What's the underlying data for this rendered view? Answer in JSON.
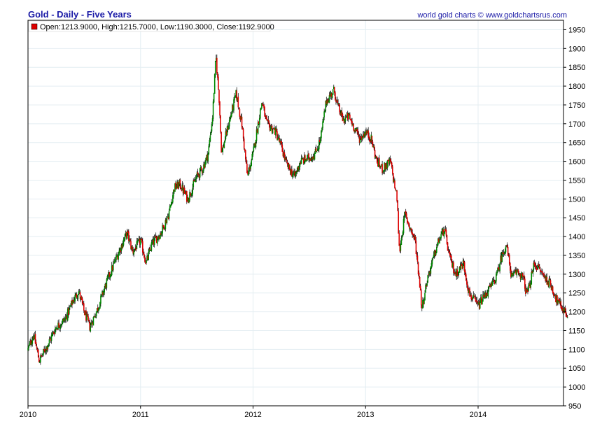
{
  "header": {
    "title": "Gold - Daily - Five Years",
    "source": "world gold charts © www.goldchartsrus.com"
  },
  "legend": {
    "text": "Open:1213.9000, High:1215.7000, Low:1190.3000, Close:1192.9000",
    "swatch_color": "#dd0000"
  },
  "colors": {
    "up": "#008800",
    "down": "#dd0000",
    "shadow": "#000000",
    "grid": "#e4eef2",
    "axis": "#000000"
  },
  "chart_data": {
    "type": "line",
    "title": "Gold - Daily - Five Years",
    "y_axis_side": "right",
    "ylim": [
      950,
      1975
    ],
    "xlim": [
      2010.0,
      2014.8
    ],
    "grid": true,
    "legend_position": "top-left",
    "y_ticks": [
      "950",
      "1000",
      "1050",
      "1100",
      "1150",
      "1200",
      "1250",
      "1300",
      "1350",
      "1400",
      "1450",
      "1500",
      "1550",
      "1600",
      "1650",
      "1700",
      "1750",
      "1800",
      "1850",
      "1900",
      "1950"
    ],
    "x_ticks": [
      "2010",
      "2011",
      "2012",
      "2013",
      "2014"
    ],
    "series": [
      {
        "x": [
          2010.0,
          2010.05,
          2010.1,
          2010.17,
          2010.25,
          2010.33,
          2010.4,
          2010.45,
          2010.5,
          2010.55,
          2010.62,
          2010.7,
          2010.78,
          2010.85,
          2010.88,
          2010.93,
          2011.0,
          2011.05,
          2011.1,
          2011.18,
          2011.25,
          2011.3,
          2011.35,
          2011.42,
          2011.5,
          2011.55,
          2011.6,
          2011.64,
          2011.67,
          2011.7,
          2011.72,
          2011.75,
          2011.8,
          2011.85,
          2011.9,
          2011.95,
          2012.0,
          2012.05,
          2012.08,
          2012.12,
          2012.2,
          2012.25,
          2012.3,
          2012.37,
          2012.42,
          2012.5,
          2012.55,
          2012.6,
          2012.65,
          2012.72,
          2012.75,
          2012.8,
          2012.85,
          2012.9,
          2012.95,
          2013.0,
          2013.05,
          2013.1,
          2013.15,
          2013.22,
          2013.28,
          2013.3,
          2013.35,
          2013.4,
          2013.44,
          2013.48,
          2013.5,
          2013.55,
          2013.6,
          2013.65,
          2013.7,
          2013.75,
          2013.8,
          2013.87,
          2013.92,
          2014.0,
          2014.05,
          2014.12,
          2014.17,
          2014.2,
          2014.25,
          2014.3,
          2014.35,
          2014.4,
          2014.43,
          2014.45,
          2014.5,
          2014.55,
          2014.6,
          2014.65,
          2014.7,
          2014.75,
          2014.8
        ],
        "values": [
          1100,
          1140,
          1070,
          1110,
          1160,
          1180,
          1230,
          1255,
          1200,
          1160,
          1210,
          1280,
          1340,
          1390,
          1410,
          1360,
          1390,
          1330,
          1380,
          1410,
          1460,
          1530,
          1540,
          1500,
          1560,
          1580,
          1620,
          1720,
          1880,
          1760,
          1620,
          1660,
          1720,
          1780,
          1700,
          1560,
          1620,
          1710,
          1760,
          1700,
          1680,
          1640,
          1590,
          1560,
          1600,
          1610,
          1620,
          1660,
          1760,
          1790,
          1750,
          1710,
          1720,
          1690,
          1660,
          1680,
          1660,
          1600,
          1580,
          1600,
          1500,
          1360,
          1460,
          1420,
          1390,
          1280,
          1210,
          1290,
          1340,
          1390,
          1420,
          1340,
          1300,
          1330,
          1250,
          1215,
          1240,
          1270,
          1300,
          1340,
          1380,
          1290,
          1310,
          1290,
          1250,
          1260,
          1330,
          1310,
          1290,
          1270,
          1230,
          1210,
          1190
        ]
      }
    ]
  }
}
